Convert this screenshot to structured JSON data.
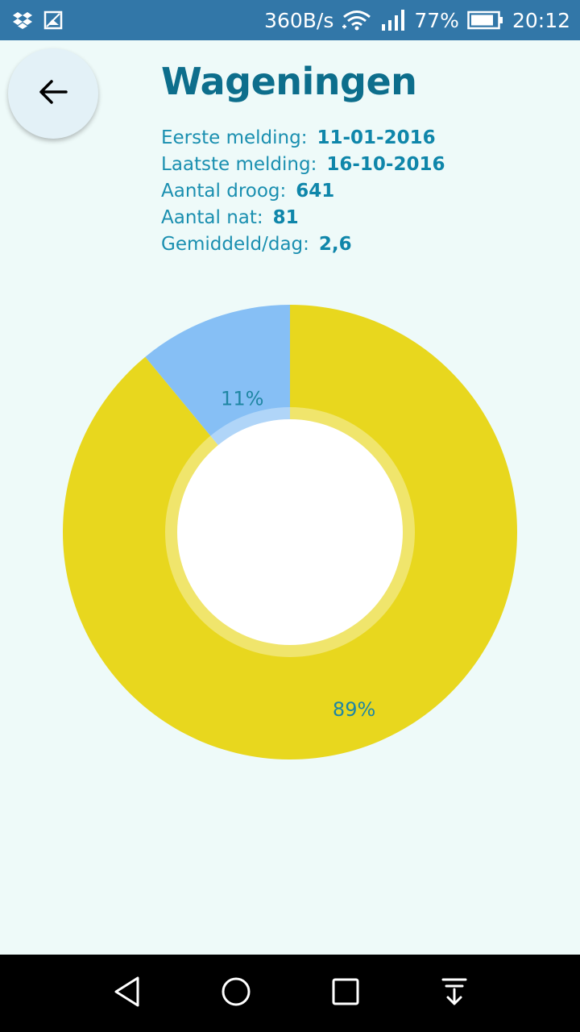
{
  "status_bar": {
    "network_speed": "360B/s",
    "battery": "77%",
    "time": "20:12",
    "icons": [
      "dropbox-icon",
      "gallery-icon",
      "wifi-icon",
      "signal-icon",
      "battery-icon"
    ]
  },
  "header": {
    "back_icon": "arrow-left-icon",
    "title": "Wageningen"
  },
  "stats": [
    {
      "label": "Eerste melding:",
      "value": "11-01-2016"
    },
    {
      "label": "Laatste melding:",
      "value": "16-10-2016"
    },
    {
      "label": "Aantal droog:",
      "value": "641"
    },
    {
      "label": "Aantal nat:",
      "value": "81"
    },
    {
      "label": "Gemiddeld/dag:",
      "value": "2,6"
    }
  ],
  "chart_data": {
    "type": "pie",
    "style": "donut",
    "slices": [
      {
        "value": 11,
        "label": "11%",
        "color": "#86bff5"
      },
      {
        "value": 89,
        "label": "89%",
        "color": "#e8d71e"
      }
    ],
    "label_color": "#1f86a3"
  },
  "colors": {
    "status_bar": "#3277a8",
    "background": "#eefaf9",
    "title": "#0d6e8c",
    "text": "#1a8fb0"
  },
  "nav_bar": {
    "icons": [
      "back-triangle-icon",
      "home-circle-icon",
      "recents-square-icon",
      "notification-pull-icon"
    ]
  }
}
